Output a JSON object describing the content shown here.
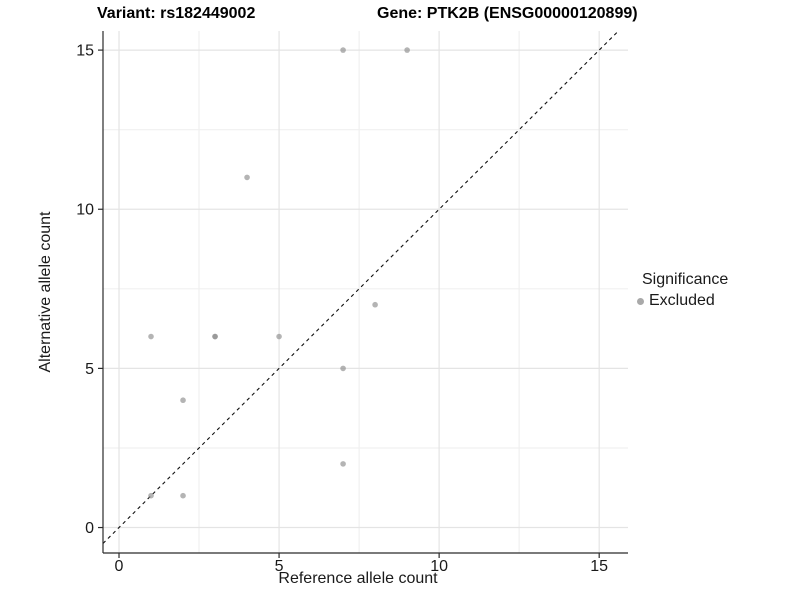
{
  "titles": {
    "left": "Variant: rs182449002",
    "right": "Gene: PTK2B (ENSG00000120899)"
  },
  "legend": {
    "title": "Significance",
    "items": [
      {
        "label": "Excluded",
        "color": "#a9a9a9"
      }
    ]
  },
  "chart_data": {
    "type": "scatter",
    "title": "Variant: rs182449002 — Gene: PTK2B (ENSG00000120899)",
    "xlabel": "Reference allele count",
    "ylabel": "Alternative allele count",
    "xlim": [
      -0.5,
      15.9
    ],
    "ylim": [
      -0.8,
      15.6
    ],
    "xticks": [
      0,
      5,
      10,
      15
    ],
    "yticks": [
      0,
      5,
      10,
      15
    ],
    "xtick_labels": [
      "0",
      "5",
      "10",
      "15"
    ],
    "ytick_labels": [
      "0",
      "5",
      "10",
      "15"
    ],
    "x_minor_gridlines": [
      2.5,
      7.5,
      12.5
    ],
    "y_minor_gridlines": [
      2.5,
      7.5,
      12.5
    ],
    "grid": "on",
    "legend_position": "right",
    "identity_line": {
      "style": "dashed",
      "color": "#111111",
      "equation": "y = x"
    },
    "series": [
      {
        "name": "Excluded",
        "marker": "circle",
        "color": "#8c8c8c",
        "opacity": 0.65,
        "points": [
          [
            1,
            1
          ],
          [
            1,
            6
          ],
          [
            2,
            1
          ],
          [
            2,
            4
          ],
          [
            3,
            6
          ],
          [
            3,
            6
          ],
          [
            4,
            11
          ],
          [
            5,
            6
          ],
          [
            7,
            2
          ],
          [
            7,
            5
          ],
          [
            7,
            15
          ],
          [
            8,
            7
          ],
          [
            9,
            15
          ]
        ]
      }
    ]
  }
}
